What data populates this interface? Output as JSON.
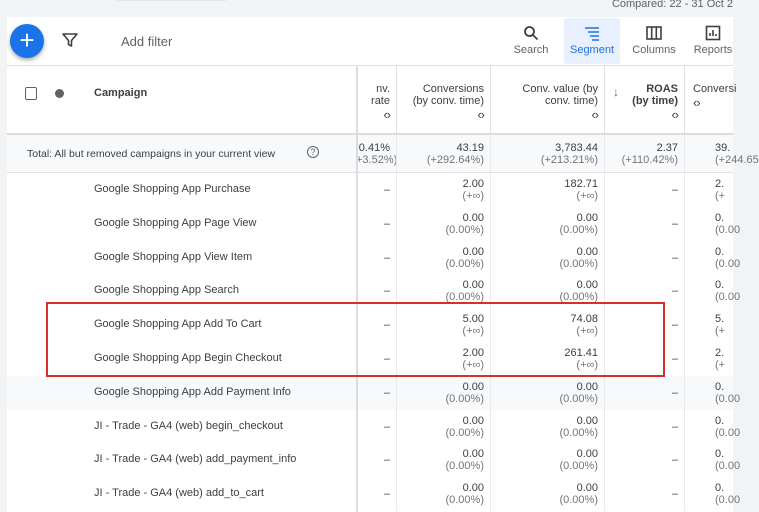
{
  "header": {
    "compared": "Compared: 22 - 31 Oct 2"
  },
  "toolbar": {
    "add_filter": "Add filter",
    "search": "Search",
    "segment": "Segment",
    "columns": "Columns",
    "reports": "Reports"
  },
  "table": {
    "campaign_header": "Campaign",
    "columns": [
      {
        "label": "nv. rate"
      },
      {
        "label": "Conversions (by conv. time)"
      },
      {
        "label": "Conv. value (by conv. time)"
      },
      {
        "label": "ROAS (by time)",
        "sorted": "descending"
      },
      {
        "label": "Conversi"
      }
    ],
    "total": {
      "label": "Total: All but removed campaigns in your current view",
      "values": [
        [
          "0.41%",
          "+3.52%)"
        ],
        [
          "43.19",
          "(+292.64%)"
        ],
        [
          "3,783.44",
          "(+213.21%)"
        ],
        [
          "2.37",
          "(+110.42%)"
        ],
        [
          "39.",
          "(+244.65"
        ]
      ]
    },
    "rows": [
      {
        "campaign": "Google Shopping App Purchase",
        "values": [
          [
            "–",
            ""
          ],
          [
            "2.00",
            "(+∞)"
          ],
          [
            "182.71",
            "(+∞)"
          ],
          [
            "–",
            ""
          ],
          [
            "2.",
            "(+"
          ]
        ]
      },
      {
        "campaign": "Google Shopping App Page View",
        "values": [
          [
            "–",
            ""
          ],
          [
            "0.00",
            "(0.00%)"
          ],
          [
            "0.00",
            "(0.00%)"
          ],
          [
            "–",
            ""
          ],
          [
            "0.",
            "(0.00"
          ]
        ]
      },
      {
        "campaign": "Google Shopping App View Item",
        "values": [
          [
            "–",
            ""
          ],
          [
            "0.00",
            "(0.00%)"
          ],
          [
            "0.00",
            "(0.00%)"
          ],
          [
            "–",
            ""
          ],
          [
            "0.",
            "(0.00"
          ]
        ]
      },
      {
        "campaign": "Google Shopping App Search",
        "values": [
          [
            "–",
            ""
          ],
          [
            "0.00",
            "(0.00%)"
          ],
          [
            "0.00",
            "(0.00%)"
          ],
          [
            "–",
            ""
          ],
          [
            "0.",
            "(0.00"
          ]
        ]
      },
      {
        "campaign": "Google Shopping App Add To Cart",
        "values": [
          [
            "–",
            ""
          ],
          [
            "5.00",
            "(+∞)"
          ],
          [
            "74.08",
            "(+∞)"
          ],
          [
            "–",
            ""
          ],
          [
            "5.",
            "(+"
          ]
        ]
      },
      {
        "campaign": "Google Shopping App Begin Checkout",
        "values": [
          [
            "–",
            ""
          ],
          [
            "2.00",
            "(+∞)"
          ],
          [
            "261.41",
            "(+∞)"
          ],
          [
            "–",
            ""
          ],
          [
            "2.",
            "(+"
          ]
        ]
      },
      {
        "campaign": "Google Shopping App Add Payment Info",
        "values": [
          [
            "–",
            ""
          ],
          [
            "0.00",
            "(0.00%)"
          ],
          [
            "0.00",
            "(0.00%)"
          ],
          [
            "–",
            ""
          ],
          [
            "0.",
            "(0.00"
          ]
        ]
      },
      {
        "campaign": "JI - Trade - GA4 (web) begin_checkout",
        "values": [
          [
            "–",
            ""
          ],
          [
            "0.00",
            "(0.00%)"
          ],
          [
            "0.00",
            "(0.00%)"
          ],
          [
            "–",
            ""
          ],
          [
            "0.",
            "(0.00"
          ]
        ]
      },
      {
        "campaign": "JI - Trade - GA4 (web) add_payment_info",
        "values": [
          [
            "–",
            ""
          ],
          [
            "0.00",
            "(0.00%)"
          ],
          [
            "0.00",
            "(0.00%)"
          ],
          [
            "–",
            ""
          ],
          [
            "0.",
            "(0.00"
          ]
        ]
      },
      {
        "campaign": "JI - Trade - GA4 (web) add_to_cart",
        "values": [
          [
            "–",
            ""
          ],
          [
            "0.00",
            "(0.00%)"
          ],
          [
            "0.00",
            "(0.00%)"
          ],
          [
            "–",
            ""
          ],
          [
            "0.",
            "(0.00"
          ]
        ]
      }
    ],
    "hover_row": 6,
    "highlight": {
      "color": "#d93025",
      "rows": [
        4,
        5
      ]
    }
  },
  "colors": {
    "accent": "#1a73e8",
    "highlight": "#d93025"
  }
}
